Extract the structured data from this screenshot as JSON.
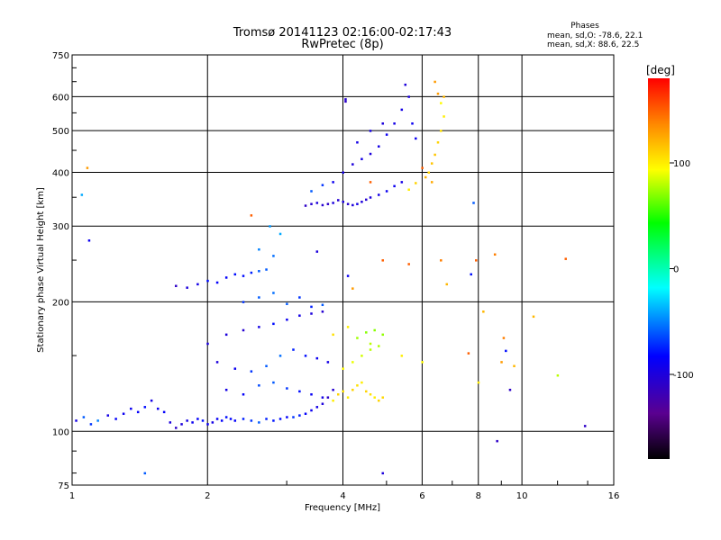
{
  "chart_data": {
    "type": "scatter",
    "title": "Tromsø 20141123 02:16:00-02:17:43",
    "subtitle": "RwPretec (8p)",
    "stats": {
      "heading": "Phases",
      "line_o": "mean, sd,O: -78.6, 22.1",
      "line_x": "mean, sd,X:  88.6, 22.5"
    },
    "xlabel": "Frequency [MHz]",
    "ylabel": "Stationary phase Virtual Height [km]",
    "x_scale": "log",
    "y_scale": "log",
    "xlim": [
      1,
      16
    ],
    "ylim": [
      75,
      750
    ],
    "x_ticks": [
      1,
      2,
      4,
      6,
      8,
      10,
      16
    ],
    "x_tick_labels": [
      "1",
      "2",
      "4",
      "6",
      "8",
      "10",
      "16"
    ],
    "x_grid": [
      2,
      4,
      6,
      8,
      10
    ],
    "y_ticks": [
      75,
      100,
      200,
      300,
      400,
      500,
      600,
      750
    ],
    "y_tick_labels": [
      "75",
      "100",
      "200",
      "300",
      "400",
      "500",
      "600",
      "750"
    ],
    "y_grid": [
      100,
      200,
      300,
      400,
      500,
      600
    ],
    "grid": true,
    "colorbar": {
      "label": "[deg]",
      "range": [
        -180,
        180
      ],
      "ticks": [
        100,
        0,
        -100
      ],
      "tick_labels": [
        "100",
        "0",
        "-100"
      ],
      "placement": "right"
    },
    "points": [
      [
        1.02,
        106,
        -95
      ],
      [
        1.06,
        108,
        -60
      ],
      [
        1.1,
        104,
        -70
      ],
      [
        1.14,
        106,
        -50
      ],
      [
        1.05,
        355,
        -40
      ],
      [
        1.08,
        410,
        130
      ],
      [
        1.09,
        278,
        -90
      ],
      [
        1.2,
        109,
        -95
      ],
      [
        1.25,
        107,
        -85
      ],
      [
        1.3,
        110,
        -90
      ],
      [
        1.35,
        113,
        -90
      ],
      [
        1.4,
        111,
        -85
      ],
      [
        1.45,
        114,
        -80
      ],
      [
        1.5,
        118,
        -95
      ],
      [
        1.55,
        113,
        -90
      ],
      [
        1.6,
        111,
        -85
      ],
      [
        1.65,
        105,
        -100
      ],
      [
        1.7,
        102,
        -110
      ],
      [
        1.75,
        104,
        -100
      ],
      [
        1.8,
        106,
        -95
      ],
      [
        1.85,
        105,
        -90
      ],
      [
        1.9,
        107,
        -85
      ],
      [
        1.95,
        106,
        -80
      ],
      [
        2.0,
        104,
        -90
      ],
      [
        2.05,
        105,
        -95
      ],
      [
        2.1,
        107,
        -88
      ],
      [
        2.15,
        106,
        -85
      ],
      [
        2.2,
        108,
        -80
      ],
      [
        2.25,
        107,
        -82
      ],
      [
        2.3,
        106,
        -85
      ],
      [
        2.4,
        107,
        -75
      ],
      [
        2.5,
        106,
        -70
      ],
      [
        2.6,
        105,
        -60
      ],
      [
        2.7,
        107,
        -75
      ],
      [
        2.8,
        106,
        -78
      ],
      [
        2.9,
        107,
        -80
      ],
      [
        3.0,
        108,
        -85
      ],
      [
        3.1,
        108,
        -70
      ],
      [
        3.2,
        109,
        -75
      ],
      [
        3.3,
        110,
        -85
      ],
      [
        3.4,
        112,
        -90
      ],
      [
        3.5,
        114,
        -95
      ],
      [
        3.6,
        116,
        -100
      ],
      [
        3.7,
        120,
        -110
      ],
      [
        3.8,
        125,
        -105
      ],
      [
        1.7,
        218,
        -110
      ],
      [
        1.8,
        216,
        -100
      ],
      [
        1.9,
        220,
        -95
      ],
      [
        2.0,
        224,
        -80
      ],
      [
        2.1,
        222,
        -85
      ],
      [
        2.2,
        228,
        -85
      ],
      [
        2.3,
        232,
        -80
      ],
      [
        2.4,
        230,
        -80
      ],
      [
        2.5,
        234,
        -75
      ],
      [
        2.6,
        236,
        -60
      ],
      [
        2.7,
        238,
        -60
      ],
      [
        2.8,
        256,
        -55
      ],
      [
        2.9,
        288,
        -40
      ],
      [
        2.75,
        300,
        -45
      ],
      [
        2.6,
        265,
        -50
      ],
      [
        2.0,
        160,
        -100
      ],
      [
        2.2,
        168,
        -100
      ],
      [
        2.4,
        172,
        -105
      ],
      [
        2.6,
        175,
        -95
      ],
      [
        2.8,
        178,
        -80
      ],
      [
        3.0,
        182,
        -90
      ],
      [
        3.2,
        186,
        -95
      ],
      [
        3.4,
        188,
        -100
      ],
      [
        3.6,
        190,
        -105
      ],
      [
        2.1,
        145,
        -100
      ],
      [
        2.3,
        140,
        -90
      ],
      [
        2.5,
        138,
        -70
      ],
      [
        2.7,
        142,
        -60
      ],
      [
        2.9,
        150,
        -55
      ],
      [
        3.1,
        155,
        -75
      ],
      [
        3.3,
        150,
        -80
      ],
      [
        3.5,
        148,
        -90
      ],
      [
        3.7,
        145,
        -95
      ],
      [
        2.2,
        125,
        -95
      ],
      [
        2.4,
        122,
        -85
      ],
      [
        2.6,
        128,
        -65
      ],
      [
        2.8,
        130,
        -60
      ],
      [
        3.0,
        126,
        -70
      ],
      [
        3.2,
        124,
        -80
      ],
      [
        3.4,
        122,
        -88
      ],
      [
        3.6,
        120,
        -95
      ],
      [
        2.4,
        200,
        -70
      ],
      [
        2.6,
        205,
        -60
      ],
      [
        2.8,
        210,
        -55
      ],
      [
        3.0,
        198,
        -60
      ],
      [
        3.2,
        205,
        -70
      ],
      [
        3.4,
        195,
        -75
      ],
      [
        3.8,
        118,
        100
      ],
      [
        3.9,
        122,
        110
      ],
      [
        4.0,
        124,
        105
      ],
      [
        4.1,
        120,
        100
      ],
      [
        4.2,
        125,
        110
      ],
      [
        4.3,
        128,
        105
      ],
      [
        4.4,
        130,
        100
      ],
      [
        4.5,
        124,
        110
      ],
      [
        4.6,
        122,
        105
      ],
      [
        4.7,
        120,
        100
      ],
      [
        4.8,
        118,
        110
      ],
      [
        4.9,
        120,
        108
      ],
      [
        4.0,
        140,
        95
      ],
      [
        4.2,
        145,
        90
      ],
      [
        4.4,
        150,
        85
      ],
      [
        4.6,
        155,
        80
      ],
      [
        4.8,
        158,
        78
      ],
      [
        4.3,
        165,
        75
      ],
      [
        4.5,
        170,
        70
      ],
      [
        4.7,
        172,
        70
      ],
      [
        4.9,
        168,
        72
      ],
      [
        4.6,
        160,
        80
      ],
      [
        3.8,
        168,
        105
      ],
      [
        4.1,
        175,
        100
      ],
      [
        3.3,
        335,
        -110
      ],
      [
        3.4,
        338,
        -105
      ],
      [
        3.5,
        340,
        -100
      ],
      [
        3.6,
        336,
        -105
      ],
      [
        3.7,
        338,
        -110
      ],
      [
        3.8,
        340,
        -100
      ],
      [
        3.9,
        345,
        -105
      ],
      [
        4.0,
        342,
        -100
      ],
      [
        4.1,
        338,
        -105
      ],
      [
        4.2,
        336,
        -100
      ],
      [
        4.3,
        338,
        -95
      ],
      [
        4.4,
        342,
        -100
      ],
      [
        4.5,
        346,
        -105
      ],
      [
        4.6,
        350,
        -100
      ],
      [
        4.8,
        355,
        -95
      ],
      [
        5.0,
        362,
        -90
      ],
      [
        5.2,
        372,
        -90
      ],
      [
        5.4,
        380,
        -95
      ],
      [
        5.6,
        365,
        100
      ],
      [
        5.8,
        378,
        110
      ],
      [
        3.4,
        362,
        -60
      ],
      [
        3.6,
        374,
        -70
      ],
      [
        3.8,
        380,
        -90
      ],
      [
        4.0,
        400,
        -95
      ],
      [
        4.2,
        418,
        -100
      ],
      [
        4.4,
        430,
        -95
      ],
      [
        4.6,
        442,
        -100
      ],
      [
        4.8,
        460,
        -95
      ],
      [
        5.0,
        490,
        -90
      ],
      [
        5.2,
        520,
        -95
      ],
      [
        5.4,
        560,
        -95
      ],
      [
        5.6,
        600,
        -100
      ],
      [
        5.5,
        640,
        -100
      ],
      [
        4.9,
        520,
        -100
      ],
      [
        4.6,
        500,
        -95
      ],
      [
        4.3,
        470,
        -95
      ],
      [
        5.7,
        520,
        -90
      ],
      [
        5.8,
        480,
        -90
      ],
      [
        4.05,
        585,
        -110
      ],
      [
        4.05,
        592,
        -105
      ],
      [
        6.2,
        400,
        110
      ],
      [
        6.3,
        420,
        115
      ],
      [
        6.4,
        440,
        115
      ],
      [
        6.5,
        470,
        110
      ],
      [
        6.6,
        500,
        105
      ],
      [
        6.7,
        540,
        100
      ],
      [
        6.6,
        580,
        95
      ],
      [
        6.5,
        610,
        130
      ],
      [
        6.4,
        650,
        130
      ],
      [
        6.7,
        600,
        120
      ],
      [
        6.1,
        390,
        120
      ],
      [
        6.0,
        410,
        150
      ],
      [
        6.3,
        380,
        125
      ],
      [
        4.6,
        380,
        150
      ],
      [
        4.9,
        250,
        150
      ],
      [
        5.6,
        245,
        150
      ],
      [
        5.4,
        150,
        100
      ],
      [
        6.0,
        145,
        95
      ],
      [
        6.6,
        250,
        140
      ],
      [
        6.8,
        220,
        120
      ],
      [
        7.8,
        340,
        -60
      ],
      [
        7.9,
        250,
        150
      ],
      [
        7.7,
        232,
        -80
      ],
      [
        7.6,
        152,
        150
      ],
      [
        8.0,
        130,
        100
      ],
      [
        8.2,
        190,
        120
      ],
      [
        8.7,
        258,
        140
      ],
      [
        9.0,
        145,
        130
      ],
      [
        9.1,
        165,
        140
      ],
      [
        9.2,
        154,
        -80
      ],
      [
        9.6,
        142,
        120
      ],
      [
        9.4,
        125,
        -110
      ],
      [
        8.8,
        95,
        -110
      ],
      [
        10.6,
        185,
        120
      ],
      [
        12.0,
        135,
        80
      ],
      [
        12.5,
        252,
        150
      ],
      [
        13.8,
        103,
        -110
      ],
      [
        2.5,
        318,
        150
      ],
      [
        3.6,
        197,
        -60
      ],
      [
        4.2,
        215,
        130
      ],
      [
        4.9,
        80,
        -100
      ],
      [
        1.45,
        80,
        -60
      ],
      [
        3.5,
        262,
        -100
      ],
      [
        4.1,
        230,
        -90
      ]
    ]
  }
}
